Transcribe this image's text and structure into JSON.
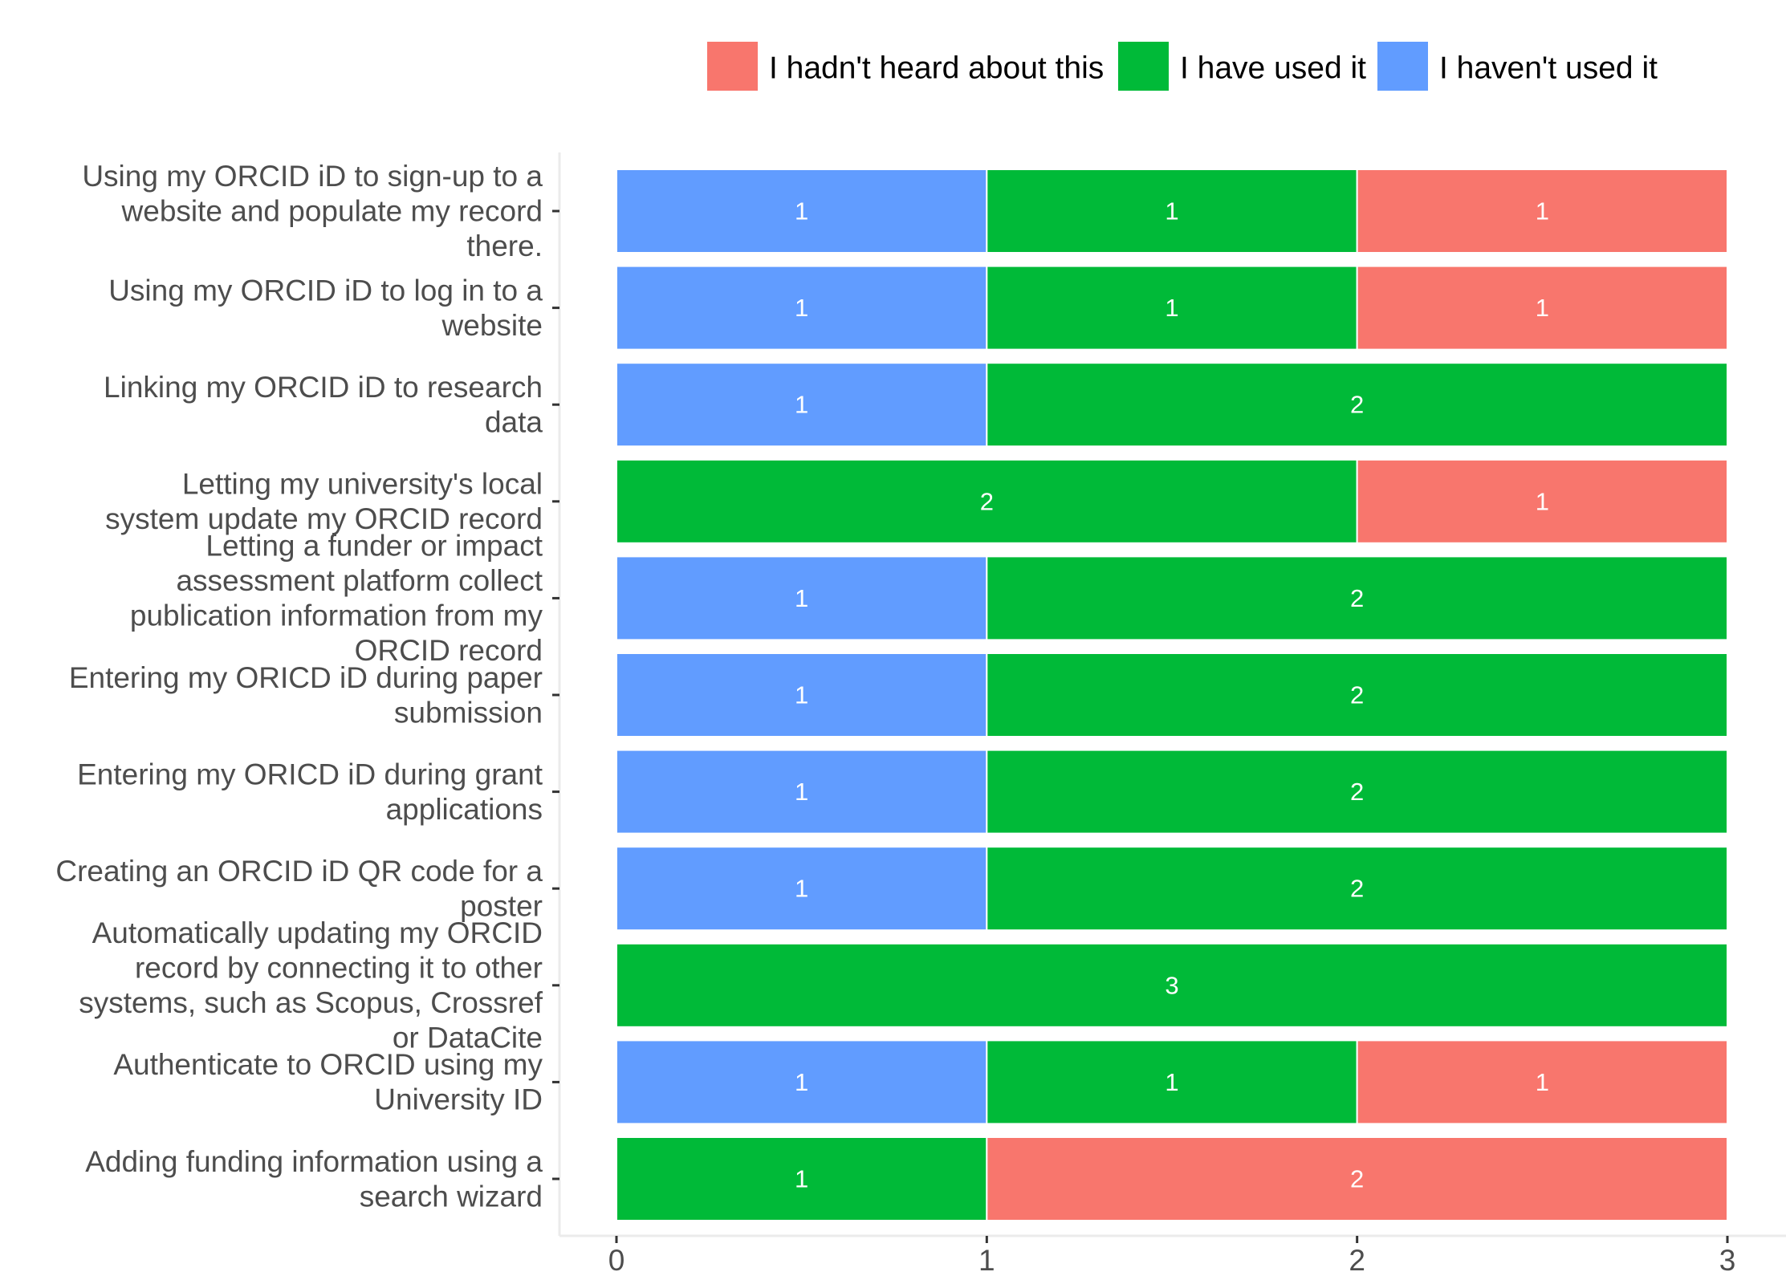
{
  "chart_data": {
    "type": "bar",
    "orientation": "horizontal",
    "stacked": true,
    "title": "",
    "xlabel": "",
    "ylabel": "",
    "xlim": [
      0,
      3
    ],
    "x_ticks": [
      "0",
      "1",
      "2",
      "3"
    ],
    "grid": false,
    "legend_position": "top",
    "categories": [
      [
        "Using my ORCID iD to sign-up to a",
        "website and populate my record",
        "there."
      ],
      [
        "Using my ORCID iD to log in to a",
        "website"
      ],
      [
        "Linking my ORCID iD to research",
        "data"
      ],
      [
        "Letting my university's local",
        "system update my ORCID record"
      ],
      [
        "Letting a funder or impact",
        "assessment platform collect",
        "publication information from my",
        "ORCID record"
      ],
      [
        "Entering my ORICD iD during paper",
        "submission"
      ],
      [
        "Entering my ORICD iD during grant",
        "applications"
      ],
      [
        "Creating an ORCID iD QR code for a",
        "poster"
      ],
      [
        "Automatically updating my ORCID",
        "record by connecting it to other",
        "systems, such as Scopus, Crossref",
        "or DataCite"
      ],
      [
        "Authenticate to ORCID using my",
        "University ID"
      ],
      [
        "Adding funding information using a",
        "search wizard"
      ]
    ],
    "stack_order": [
      "I haven't used it",
      "I have used it",
      "I hadn't heard about this"
    ],
    "legend_order": [
      "I hadn't heard about this",
      "I have used it",
      "I haven't used it"
    ],
    "series": [
      {
        "name": "I haven't used it",
        "color": "#619CFF",
        "values": [
          1,
          1,
          1,
          0,
          1,
          1,
          1,
          1,
          0,
          1,
          0
        ]
      },
      {
        "name": "I have used it",
        "color": "#00BA38",
        "values": [
          1,
          1,
          2,
          2,
          2,
          2,
          2,
          2,
          3,
          1,
          1
        ]
      },
      {
        "name": "I hadn't heard about this",
        "color": "#F8766D",
        "values": [
          1,
          1,
          0,
          1,
          0,
          0,
          0,
          0,
          0,
          1,
          2
        ]
      }
    ]
  }
}
